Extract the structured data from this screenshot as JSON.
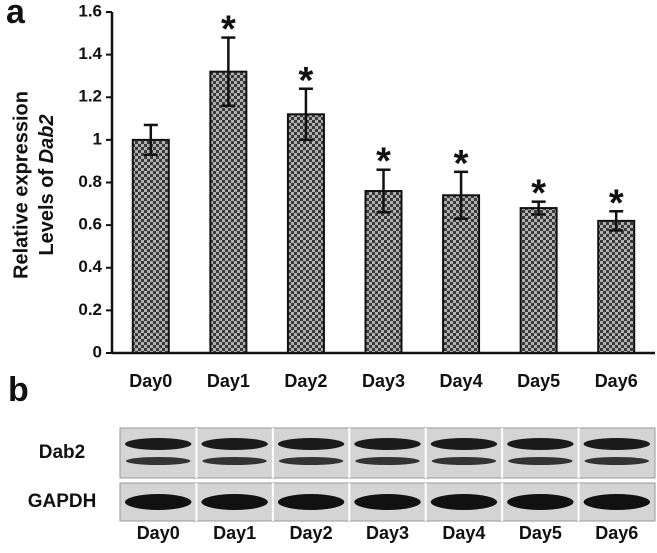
{
  "chart_data": {
    "type": "bar",
    "panel_label": "a",
    "y_label_lines": [
      "Relative expression",
      "Levels of"
    ],
    "y_label_italic": "Dab2",
    "categories": [
      "Day0",
      "Day1",
      "Day2",
      "Day3",
      "Day4",
      "Day5",
      "Day6"
    ],
    "values": [
      1.0,
      1.32,
      1.12,
      0.76,
      0.74,
      0.68,
      0.62
    ],
    "errors": [
      0.07,
      0.16,
      0.12,
      0.1,
      0.11,
      0.03,
      0.045
    ],
    "annotations": [
      {
        "category": "Day1",
        "text": "*"
      },
      {
        "category": "Day2",
        "text": "*"
      },
      {
        "category": "Day3",
        "text": "*"
      },
      {
        "category": "Day4",
        "text": "*"
      },
      {
        "category": "Day5",
        "text": "*"
      },
      {
        "category": "Day6",
        "text": "*"
      }
    ],
    "color": "#3a3a3a",
    "pattern_color": "#b0b0b0",
    "ylim": [
      0,
      1.6
    ],
    "yticks": [
      0,
      0.2,
      0.4,
      0.6,
      0.8,
      1,
      1.2,
      1.4,
      1.6
    ]
  },
  "blot": {
    "panel_label": "b",
    "rows": [
      "Dab2",
      "GAPDH"
    ],
    "lanes": [
      "Day0",
      "Day1",
      "Day2",
      "Day3",
      "Day4",
      "Day5",
      "Day6"
    ]
  }
}
